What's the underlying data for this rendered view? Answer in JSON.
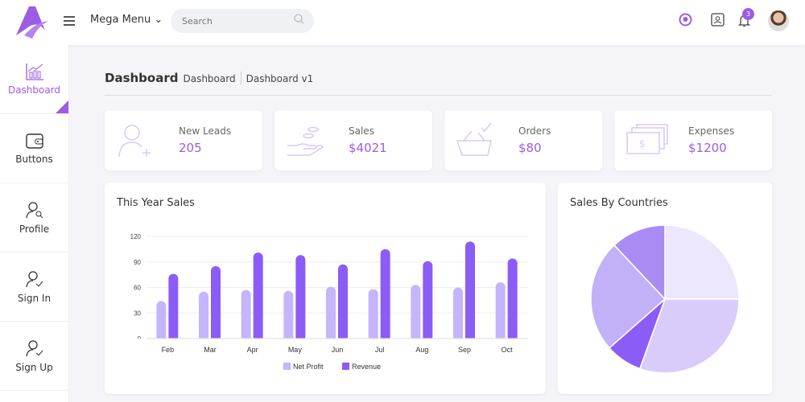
{
  "header": {
    "mega_menu": "Mega Menu",
    "search_placeholder": "Search",
    "notification_count": "3"
  },
  "sidebar": {
    "items": [
      {
        "label": "Dashboard",
        "icon": "chart-icon",
        "active": true
      },
      {
        "label": "Buttons",
        "icon": "wallet-icon"
      },
      {
        "label": "Profile",
        "icon": "user-search-icon"
      },
      {
        "label": "Sign In",
        "icon": "user-check-icon"
      },
      {
        "label": "Sign Up",
        "icon": "user-check-icon"
      }
    ]
  },
  "breadcrumb": {
    "title": "Dashboard",
    "items": [
      "Dashboard",
      "Dashboard v1"
    ]
  },
  "stats": [
    {
      "label": "New Leads",
      "value": "205",
      "icon": "user-plus-icon"
    },
    {
      "label": "Sales",
      "value": "$4021",
      "icon": "hand-coins-icon"
    },
    {
      "label": "Orders",
      "value": "$80",
      "icon": "basket-icon"
    },
    {
      "label": "Expenses",
      "value": "$1200",
      "icon": "money-icon"
    }
  ],
  "accent": "#9c5ce6",
  "chart_data": [
    {
      "type": "bar",
      "title": "This Year Sales",
      "categories": [
        "Feb",
        "Mar",
        "Apr",
        "May",
        "Jun",
        "Jul",
        "Aug",
        "Sep",
        "Oct"
      ],
      "ylim": [
        0,
        120
      ],
      "yticks": [
        0,
        30,
        60,
        90,
        120
      ],
      "grid": true,
      "legend": "bottom",
      "series": [
        {
          "name": "Net Profit",
          "color": "#c4b5fd",
          "values": [
            44,
            55,
            57,
            56,
            61,
            58,
            63,
            60,
            66
          ]
        },
        {
          "name": "Revenue",
          "color": "#8b5cf6",
          "values": [
            76,
            85,
            101,
            98,
            87,
            105,
            91,
            114,
            94
          ]
        }
      ]
    },
    {
      "type": "pie",
      "title": "Sales By Countries",
      "values": [
        25,
        30.5,
        8,
        24.5,
        12
      ],
      "colors": [
        "#ede7fd",
        "#d9ccfb",
        "#8b5cf6",
        "#c2b1f7",
        "#a98bf3"
      ]
    }
  ]
}
